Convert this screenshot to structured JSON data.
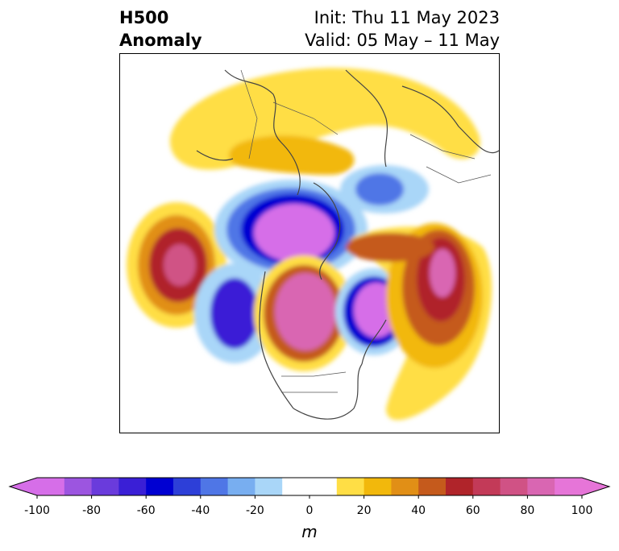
{
  "title": {
    "left_line1": "H500",
    "left_line2": "Anomaly",
    "right_line1": "Init: Thu 11 May 2023",
    "right_line2": "Valid: 05 May – 11 May"
  },
  "colorbar": {
    "unit": "m",
    "ticks": [
      "-100",
      "-80",
      "-60",
      "-40",
      "-20",
      "0",
      "20",
      "40",
      "60",
      "80",
      "100"
    ],
    "levels": [
      -100,
      -90,
      -80,
      -70,
      -60,
      -50,
      -40,
      -30,
      -20,
      -10,
      10,
      20,
      30,
      40,
      50,
      60,
      70,
      80,
      90,
      100
    ],
    "colors": [
      "#d66ee8",
      "#9c55e0",
      "#6a3bdc",
      "#3a1fd6",
      "#0000d2",
      "#2d3fd8",
      "#4f76e6",
      "#78aef0",
      "#a9d6f8",
      "#ffffff",
      "#ffde45",
      "#f2b80c",
      "#e18f16",
      "#c55a1c",
      "#b0242a",
      "#c33a58",
      "#d05285",
      "#d966b2",
      "#e675d8"
    ],
    "extend_low_color": "#d66ee8",
    "extend_high_color": "#e675d8"
  }
}
